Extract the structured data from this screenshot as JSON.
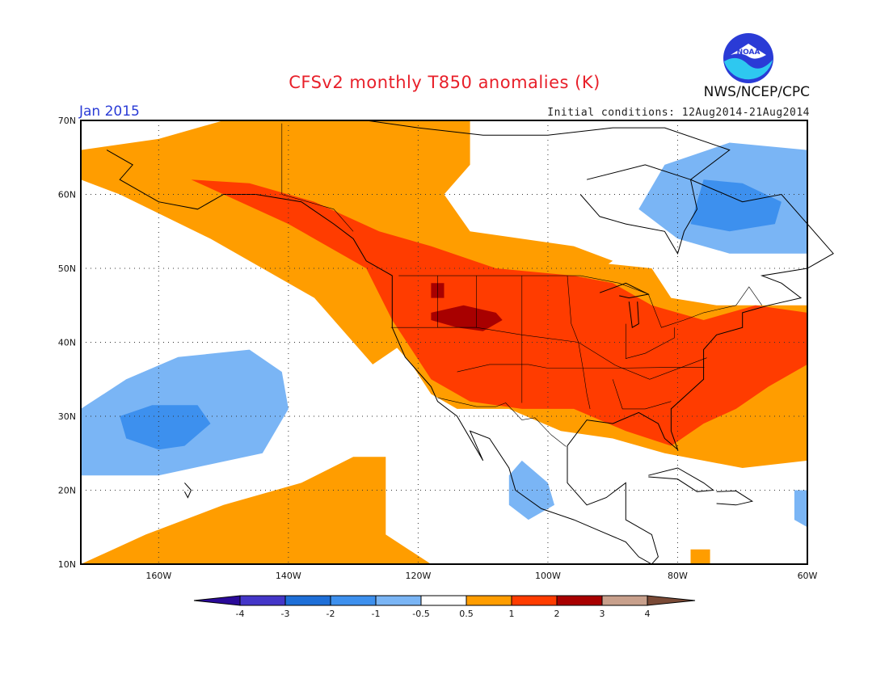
{
  "header": {
    "title": "CFSv2 monthly T850 anomalies (K)",
    "month": "Jan 2015",
    "agency": "NWS/NCEP/CPC",
    "initial_conditions": "Initial conditions: 12Aug2014-21Aug2014",
    "logo_text": "NOAA"
  },
  "map": {
    "lat_range": [
      10,
      70
    ],
    "lon_range": [
      -172,
      -60
    ],
    "lat_labels": [
      "70N",
      "60N",
      "50N",
      "40N",
      "30N",
      "20N",
      "10N"
    ],
    "lon_labels": [
      "160W",
      "140W",
      "120W",
      "100W",
      "80W",
      "60W"
    ],
    "grid": "dotted"
  },
  "legend": {
    "ticks": [
      "-4",
      "-3",
      "-2",
      "-1",
      "-0.5",
      "0.5",
      "1",
      "2",
      "3",
      "4"
    ],
    "colors": [
      "#2a0a99",
      "#4436c8",
      "#1e6fd8",
      "#3d90ee",
      "#7ab5f5",
      "#ffffff",
      "#ff9d00",
      "#ff3c00",
      "#a80000",
      "#c8a08c",
      "#7a4a36"
    ]
  }
}
